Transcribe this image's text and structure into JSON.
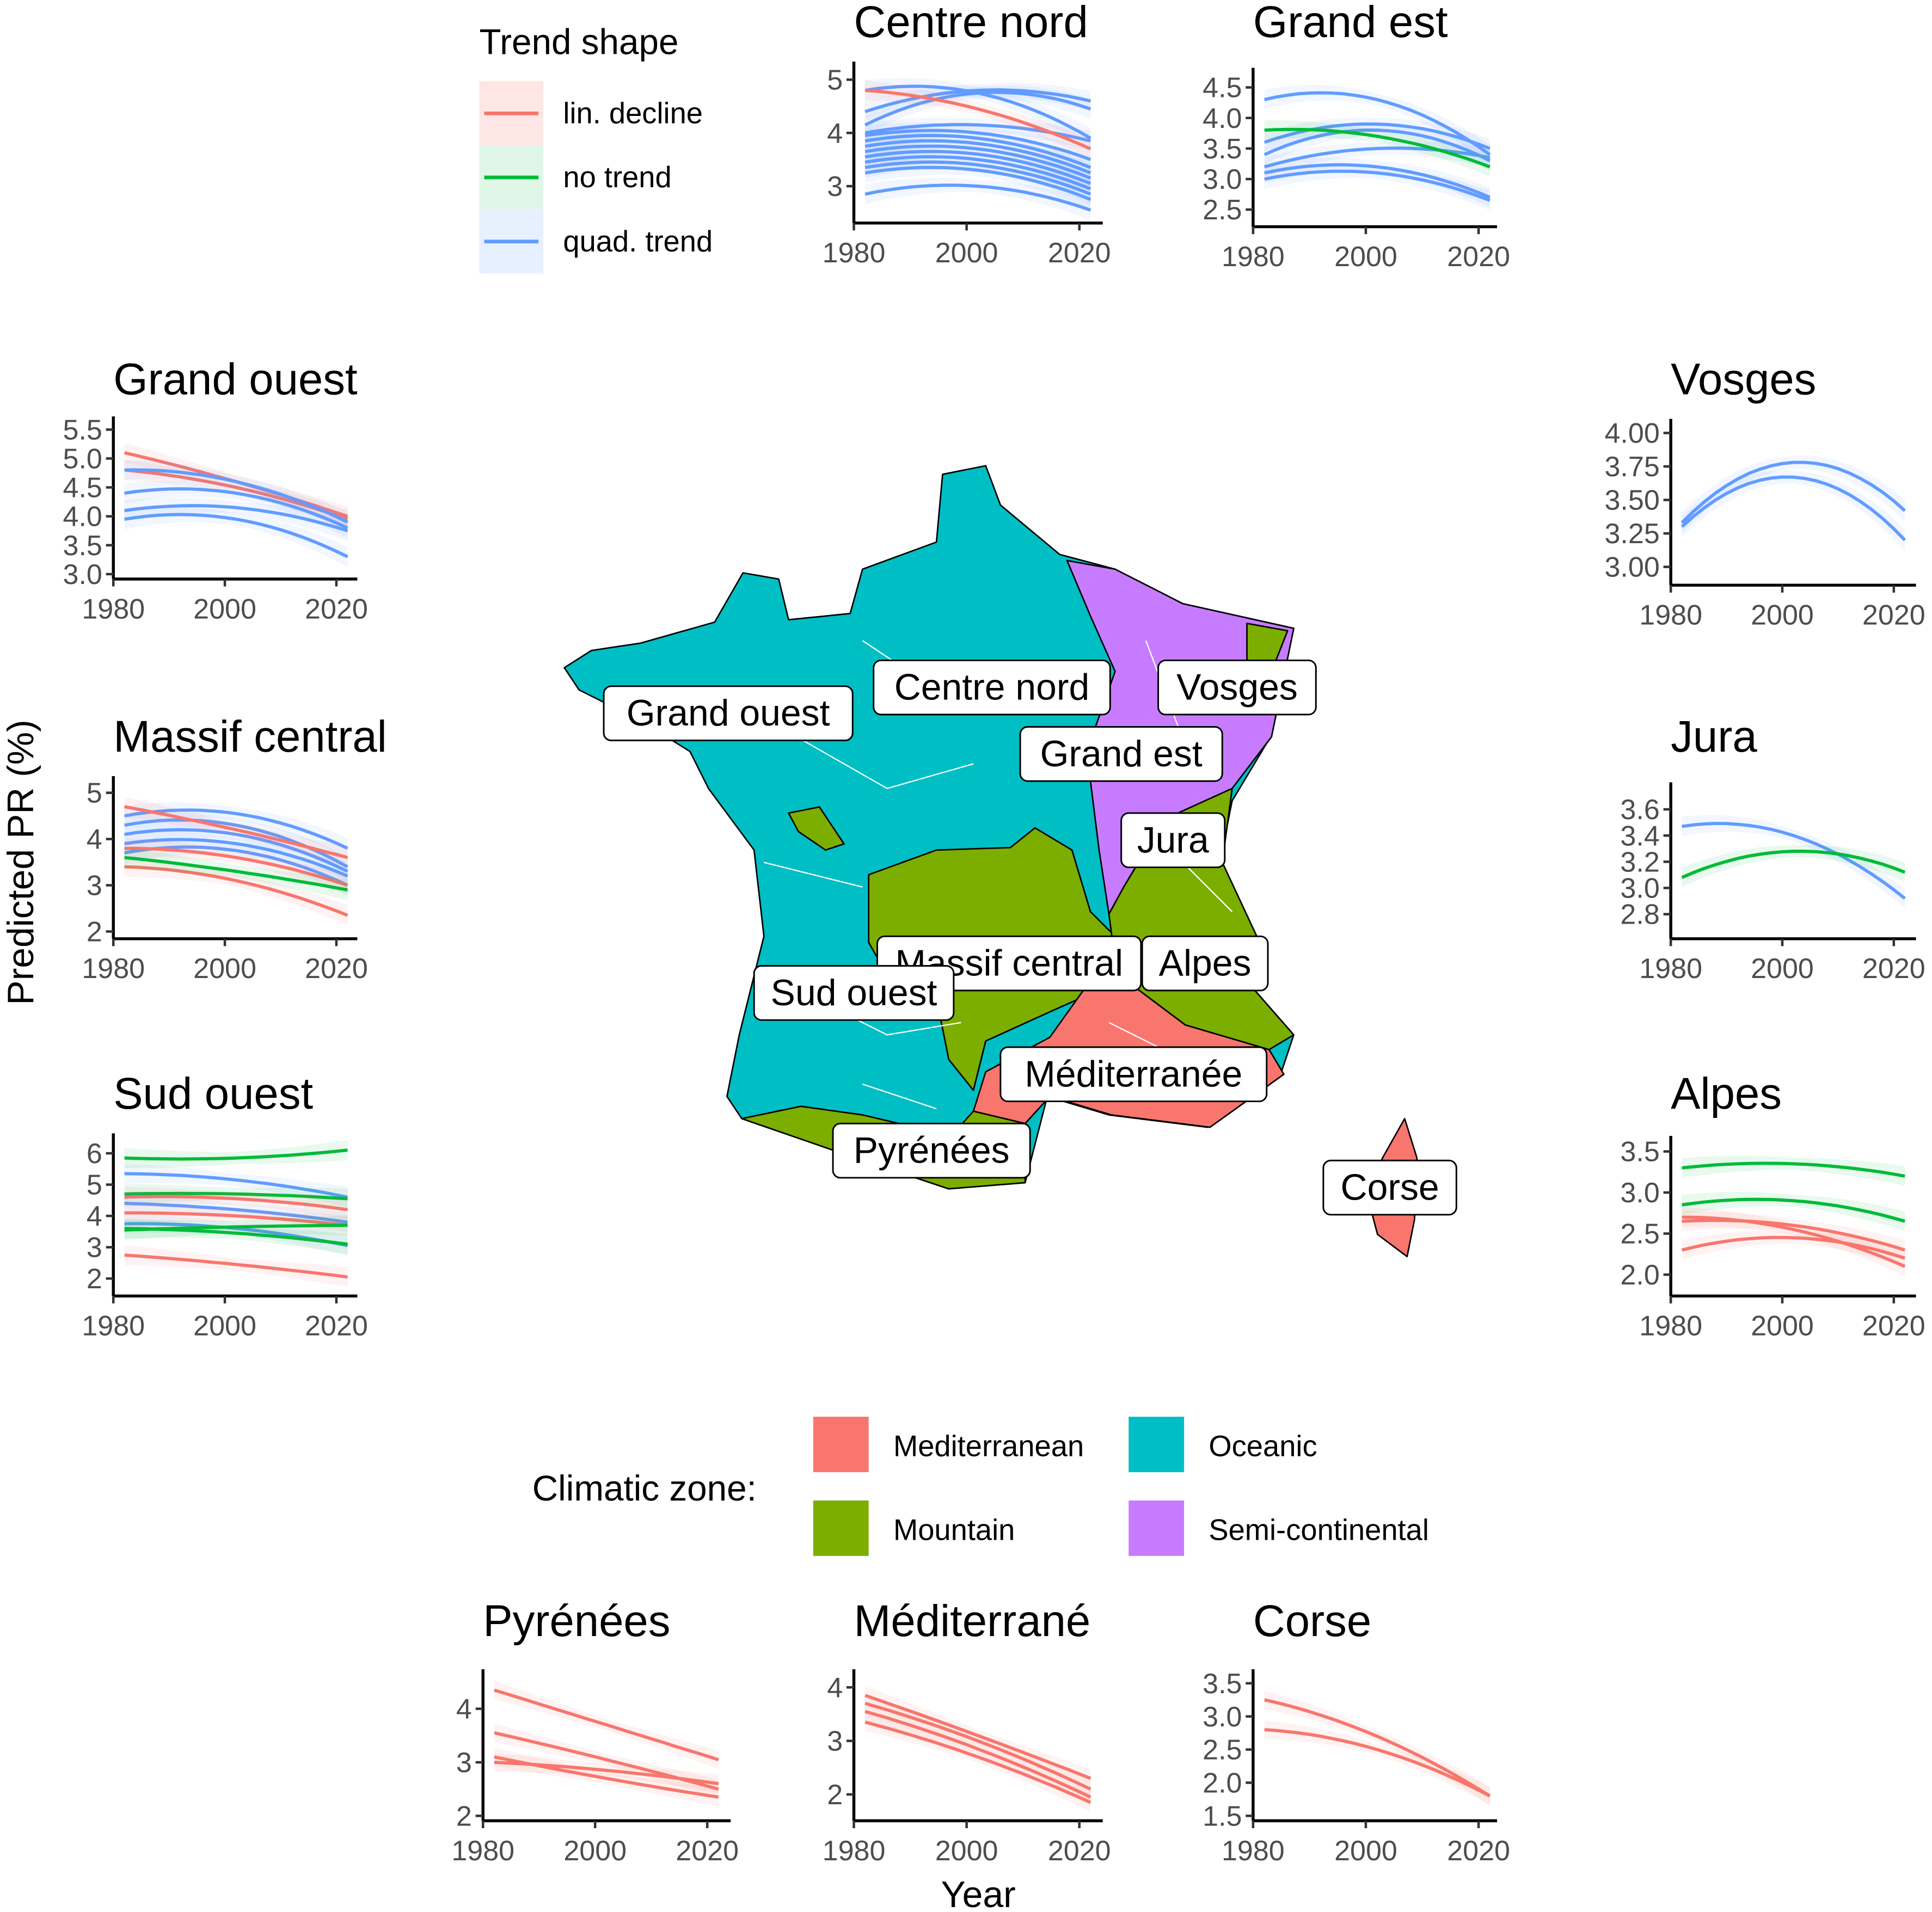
{
  "colors": {
    "lin_decline": "#F8766D",
    "no_trend": "#00BA38",
    "quad_trend": "#619CFF",
    "Mediterranean": "#F8766D",
    "Mountain": "#7CAE00",
    "Oceanic": "#00BFC4",
    "Semi-continental": "#C77CFF"
  },
  "axis_labels": {
    "y": "Predicted PR (%)",
    "x": "Year"
  },
  "trend_legend": {
    "title": "Trend shape",
    "items": [
      {
        "key": "lin_decline",
        "label": "lin. decline"
      },
      {
        "key": "no_trend",
        "label": "no trend"
      },
      {
        "key": "quad_trend",
        "label": "quad. trend"
      }
    ]
  },
  "zone_legend": {
    "title": "Climatic zone:",
    "items": [
      {
        "key": "Mediterranean",
        "label": "Mediterranean"
      },
      {
        "key": "Oceanic",
        "label": "Oceanic"
      },
      {
        "key": "Mountain",
        "label": "Mountain"
      },
      {
        "key": "Semi-continental",
        "label": "Semi-continental"
      }
    ]
  },
  "map_labels": [
    "Grand ouest",
    "Centre nord",
    "Vosges",
    "Grand est",
    "Jura",
    "Massif central",
    "Alpes",
    "Sud ouest",
    "Méditerranée",
    "Pyrénées",
    "Corse"
  ],
  "chart_data": [
    {
      "type": "line",
      "title": "Centre nord",
      "x_ticks": [
        1980,
        2000,
        2020
      ],
      "y_ticks": [
        "3",
        "4",
        "5"
      ],
      "ylim": [
        2.4,
        5.2
      ],
      "note_x": "series values given at years 1982, 2002, 2022",
      "series": [
        {
          "trend": "quad_trend",
          "values": [
            4.4,
            4.8,
            4.6
          ]
        },
        {
          "trend": "quad_trend",
          "values": [
            4.15,
            4.75,
            4.45
          ]
        },
        {
          "trend": "quad_trend",
          "values": [
            4.8,
            4.75,
            3.9
          ]
        },
        {
          "trend": "quad_trend",
          "values": [
            4.0,
            4.15,
            3.85
          ]
        },
        {
          "trend": "quad_trend",
          "values": [
            3.95,
            4.0,
            3.5
          ]
        },
        {
          "trend": "quad_trend",
          "values": [
            3.85,
            3.9,
            3.35
          ]
        },
        {
          "trend": "quad_trend",
          "values": [
            3.75,
            3.8,
            3.25
          ]
        },
        {
          "trend": "quad_trend",
          "values": [
            3.65,
            3.7,
            3.15
          ]
        },
        {
          "trend": "quad_trend",
          "values": [
            3.55,
            3.6,
            3.05
          ]
        },
        {
          "trend": "quad_trend",
          "values": [
            3.45,
            3.5,
            2.95
          ]
        },
        {
          "trend": "quad_trend",
          "values": [
            3.35,
            3.4,
            2.85
          ]
        },
        {
          "trend": "quad_trend",
          "values": [
            3.25,
            3.3,
            2.75
          ]
        },
        {
          "trend": "quad_trend",
          "values": [
            2.85,
            3.0,
            2.55
          ]
        },
        {
          "trend": "lin_decline",
          "values": [
            4.8,
            4.45,
            3.7
          ]
        }
      ]
    },
    {
      "type": "line",
      "title": "Grand est",
      "x_ticks": [
        1980,
        2000,
        2020
      ],
      "y_ticks": [
        "2.5",
        "3.0",
        "3.5",
        "4.0",
        "4.5"
      ],
      "ylim": [
        2.3,
        4.7
      ],
      "series": [
        {
          "trend": "quad_trend",
          "values": [
            4.3,
            4.3,
            3.4
          ]
        },
        {
          "trend": "quad_trend",
          "values": [
            3.6,
            3.9,
            3.5
          ]
        },
        {
          "trend": "quad_trend",
          "values": [
            3.4,
            3.8,
            3.3
          ]
        },
        {
          "trend": "quad_trend",
          "values": [
            3.2,
            3.5,
            3.35
          ]
        },
        {
          "trend": "quad_trend",
          "values": [
            3.1,
            3.2,
            2.7
          ]
        },
        {
          "trend": "quad_trend",
          "values": [
            3.0,
            3.1,
            2.65
          ]
        },
        {
          "trend": "no_trend",
          "values": [
            3.8,
            3.7,
            3.2
          ]
        }
      ]
    },
    {
      "type": "line",
      "title": "Grand ouest",
      "x_ticks": [
        1980,
        2000,
        2020
      ],
      "y_ticks": [
        "3.0",
        "3.5",
        "4.0",
        "4.5",
        "5.0",
        "5.5"
      ],
      "ylim": [
        3.0,
        5.6
      ],
      "series": [
        {
          "trend": "lin_decline",
          "values": [
            5.1,
            4.6,
            4.0
          ]
        },
        {
          "trend": "lin_decline",
          "values": [
            4.8,
            4.5,
            3.95
          ]
        },
        {
          "trend": "quad_trend",
          "values": [
            4.8,
            4.6,
            3.9
          ]
        },
        {
          "trend": "quad_trend",
          "values": [
            4.4,
            4.4,
            3.8
          ]
        },
        {
          "trend": "quad_trend",
          "values": [
            4.1,
            4.15,
            3.75
          ]
        },
        {
          "trend": "quad_trend",
          "values": [
            3.95,
            3.95,
            3.3
          ]
        }
      ]
    },
    {
      "type": "line",
      "title": "Massif central",
      "x_ticks": [
        1980,
        2000,
        2020
      ],
      "y_ticks": [
        "2",
        "3",
        "4",
        "5"
      ],
      "ylim": [
        1.95,
        5.2
      ],
      "series": [
        {
          "trend": "quad_trend",
          "values": [
            4.5,
            4.55,
            3.8
          ]
        },
        {
          "trend": "quad_trend",
          "values": [
            4.3,
            4.3,
            3.4
          ]
        },
        {
          "trend": "quad_trend",
          "values": [
            4.1,
            4.1,
            3.3
          ]
        },
        {
          "trend": "quad_trend",
          "values": [
            3.9,
            3.9,
            3.2
          ]
        },
        {
          "trend": "quad_trend",
          "values": [
            3.7,
            3.75,
            3.0
          ]
        },
        {
          "trend": "lin_decline",
          "values": [
            4.7,
            4.2,
            3.6
          ]
        },
        {
          "trend": "lin_decline",
          "values": [
            3.8,
            3.6,
            3.0
          ]
        },
        {
          "trend": "lin_decline",
          "values": [
            3.4,
            3.1,
            2.35
          ]
        },
        {
          "trend": "no_trend",
          "values": [
            3.6,
            3.3,
            2.9
          ]
        }
      ]
    },
    {
      "type": "line",
      "title": "Sud ouest",
      "x_ticks": [
        1980,
        2000,
        2020
      ],
      "y_ticks": [
        "2",
        "3",
        "4",
        "5",
        "6"
      ],
      "ylim": [
        1.6,
        6.4
      ],
      "series": [
        {
          "trend": "no_trend",
          "values": [
            5.85,
            5.85,
            6.1
          ]
        },
        {
          "trend": "quad_trend",
          "values": [
            5.35,
            5.15,
            4.6
          ]
        },
        {
          "trend": "no_trend",
          "values": [
            4.7,
            4.7,
            4.55
          ]
        },
        {
          "trend": "lin_decline",
          "values": [
            4.6,
            4.55,
            4.2
          ]
        },
        {
          "trend": "quad_trend",
          "values": [
            4.4,
            4.2,
            3.8
          ]
        },
        {
          "trend": "lin_decline",
          "values": [
            4.1,
            4.0,
            3.7
          ]
        },
        {
          "trend": "quad_trend",
          "values": [
            3.75,
            3.6,
            3.05
          ]
        },
        {
          "trend": "no_trend",
          "values": [
            3.55,
            3.65,
            3.7
          ]
        },
        {
          "trend": "no_trend",
          "values": [
            3.6,
            3.45,
            3.1
          ]
        },
        {
          "trend": "lin_decline",
          "values": [
            2.75,
            2.45,
            2.05
          ]
        }
      ]
    },
    {
      "type": "line",
      "title": "Vosges",
      "x_ticks": [
        1980,
        2000,
        2020
      ],
      "y_ticks": [
        "3.00",
        "3.25",
        "3.50",
        "3.75",
        "4.00"
      ],
      "ylim": [
        2.9,
        4.05
      ],
      "series": [
        {
          "trend": "quad_trend",
          "values": [
            3.33,
            3.78,
            3.42
          ]
        },
        {
          "trend": "quad_trend",
          "values": [
            3.3,
            3.67,
            3.2
          ]
        }
      ]
    },
    {
      "type": "line",
      "title": "Jura",
      "x_ticks": [
        1980,
        2000,
        2020
      ],
      "y_ticks": [
        "2.8",
        "3.0",
        "3.2",
        "3.4",
        "3.6"
      ],
      "ylim": [
        2.65,
        3.75
      ],
      "series": [
        {
          "trend": "quad_trend",
          "values": [
            3.47,
            3.4,
            2.92
          ]
        },
        {
          "trend": "no_trend",
          "values": [
            3.08,
            3.28,
            3.12
          ]
        }
      ]
    },
    {
      "type": "line",
      "title": "Alpes",
      "x_ticks": [
        1980,
        2000,
        2020
      ],
      "y_ticks": [
        "2.0",
        "2.5",
        "3.0",
        "3.5"
      ],
      "ylim": [
        1.8,
        3.6
      ],
      "series": [
        {
          "trend": "no_trend",
          "values": [
            3.3,
            3.35,
            3.2
          ]
        },
        {
          "trend": "no_trend",
          "values": [
            2.85,
            2.9,
            2.65
          ]
        },
        {
          "trend": "lin_decline",
          "values": [
            2.7,
            2.55,
            2.1
          ]
        },
        {
          "trend": "lin_decline",
          "values": [
            2.65,
            2.6,
            2.3
          ]
        },
        {
          "trend": "lin_decline",
          "values": [
            2.3,
            2.45,
            2.2
          ]
        }
      ]
    },
    {
      "type": "line",
      "title": "Pyrénées",
      "x_ticks": [
        1980,
        2000,
        2020
      ],
      "y_ticks": [
        "2",
        "3",
        "4"
      ],
      "ylim": [
        2.0,
        4.6
      ],
      "series": [
        {
          "trend": "lin_decline",
          "values": [
            4.35,
            3.7,
            3.05
          ]
        },
        {
          "trend": "lin_decline",
          "values": [
            3.55,
            3.05,
            2.5
          ]
        },
        {
          "trend": "lin_decline",
          "values": [
            3.0,
            2.85,
            2.6
          ]
        },
        {
          "trend": "lin_decline",
          "values": [
            3.1,
            2.7,
            2.35
          ]
        }
      ]
    },
    {
      "type": "line",
      "title": "Méditerrané",
      "x_ticks": [
        1980,
        2000,
        2020
      ],
      "y_ticks": [
        "2",
        "3",
        "4"
      ],
      "ylim": [
        1.6,
        4.2
      ],
      "series": [
        {
          "trend": "lin_decline",
          "values": [
            3.85,
            3.1,
            2.3
          ]
        },
        {
          "trend": "lin_decline",
          "values": [
            3.7,
            3.0,
            2.1
          ]
        },
        {
          "trend": "lin_decline",
          "values": [
            3.55,
            2.85,
            1.95
          ]
        },
        {
          "trend": "lin_decline",
          "values": [
            3.35,
            2.7,
            1.85
          ]
        }
      ]
    },
    {
      "type": "line",
      "title": "Corse",
      "x_ticks": [
        1980,
        2000,
        2020
      ],
      "y_ticks": [
        "1.5",
        "2.0",
        "2.5",
        "3.0",
        "3.5"
      ],
      "ylim": [
        1.5,
        3.6
      ],
      "series": [
        {
          "trend": "lin_decline",
          "values": [
            3.25,
            2.7,
            1.8
          ]
        },
        {
          "trend": "lin_decline",
          "values": [
            2.8,
            2.5,
            1.8
          ]
        }
      ]
    }
  ]
}
